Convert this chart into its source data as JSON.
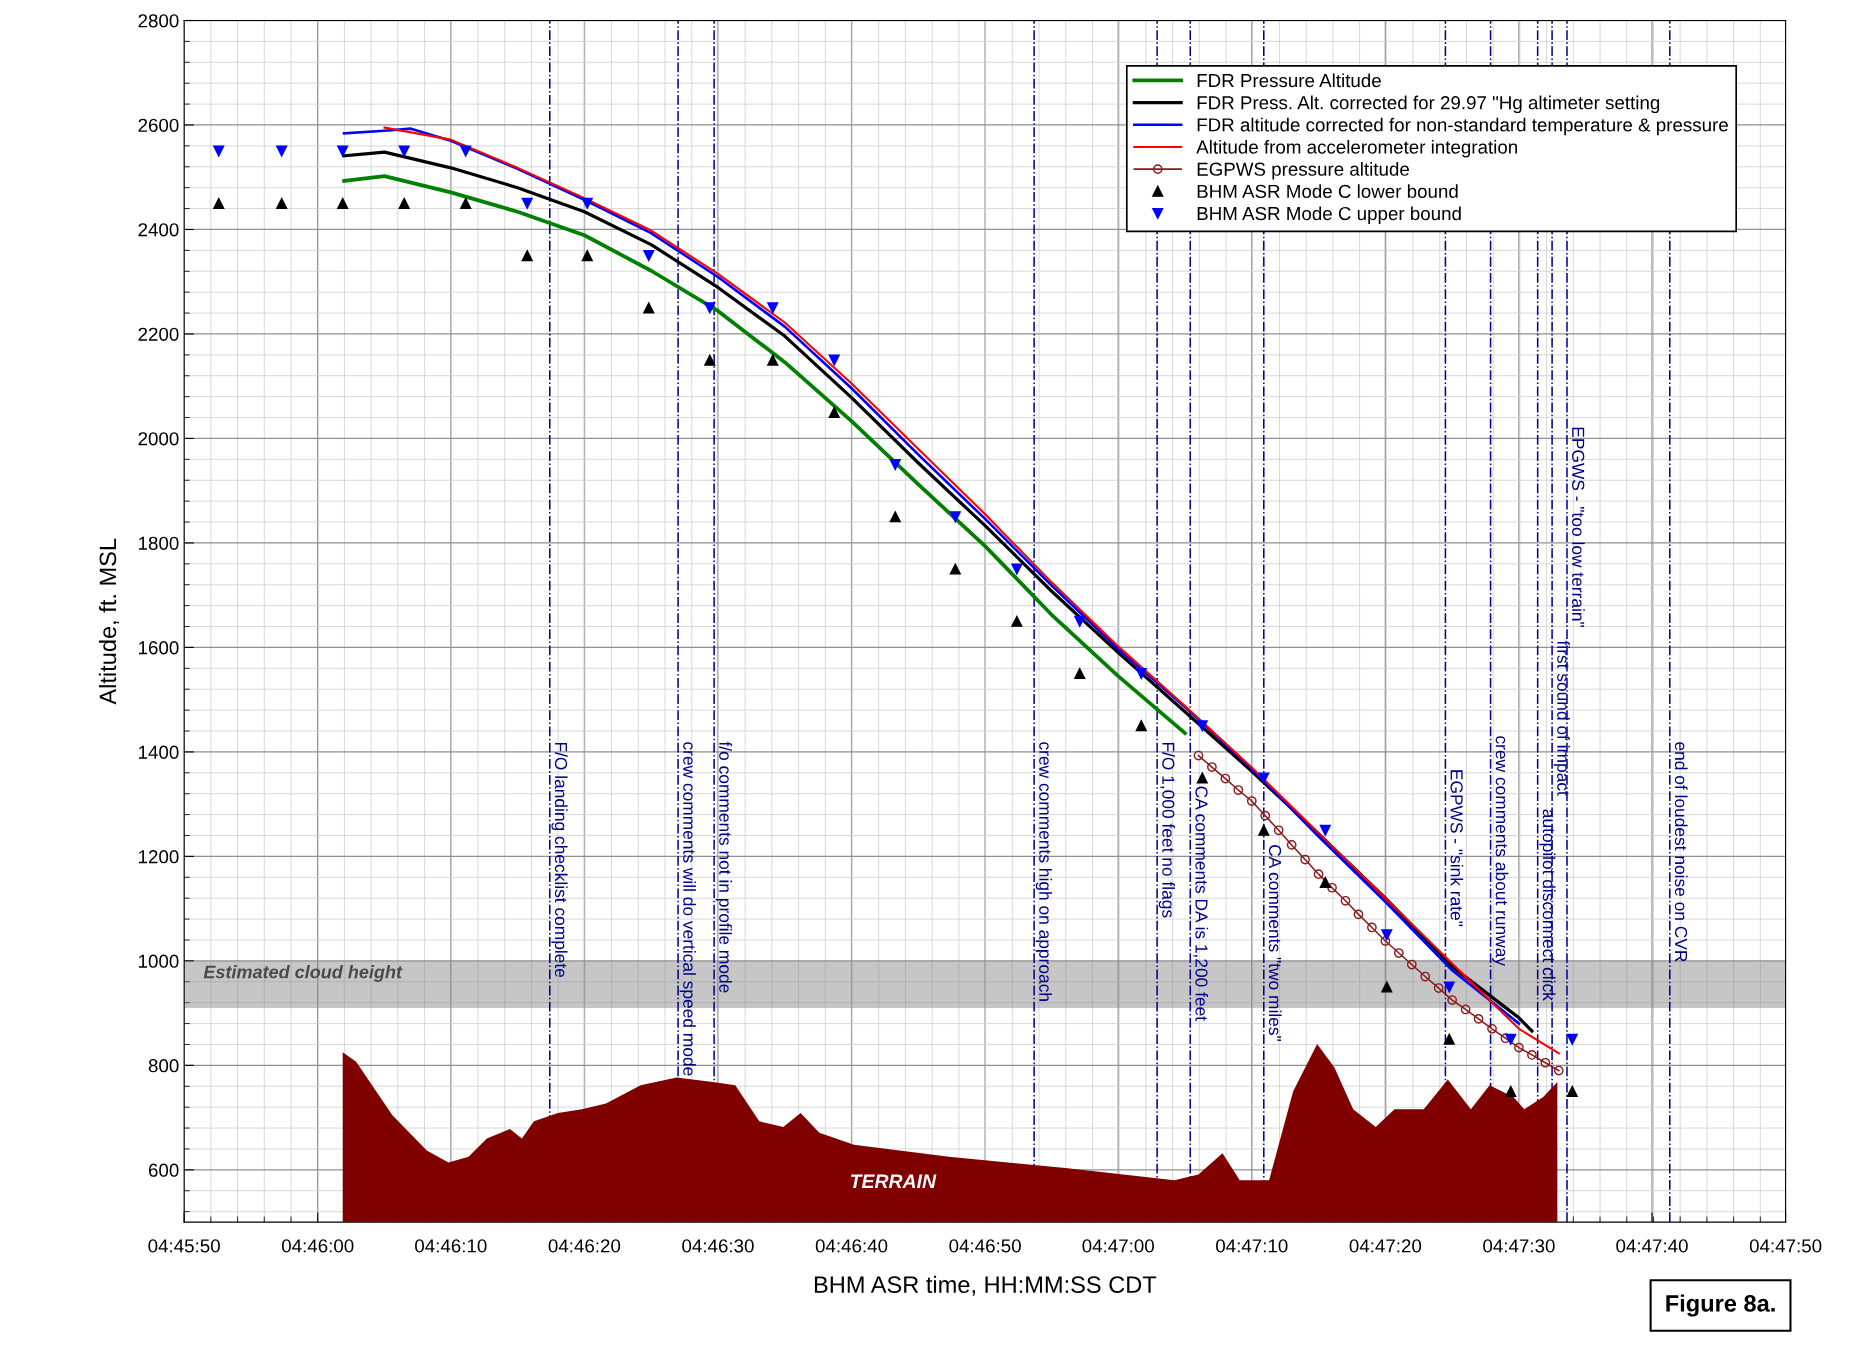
{
  "chart_data": {
    "type": "line",
    "xlabel": "BHM ASR time, HH:MM:SS CDT",
    "ylabel": "Altitude, ft. MSL",
    "xlim": [
      4.76389,
      4.79722
    ],
    "xticks": [
      {
        "value": 4.76389,
        "label": "04:45:50"
      },
      {
        "value": 4.76667,
        "label": "04:46:00"
      },
      {
        "value": 4.76944,
        "label": "04:46:10"
      },
      {
        "value": 4.77222,
        "label": "04:46:20"
      },
      {
        "value": 4.775,
        "label": "04:46:30"
      },
      {
        "value": 4.77778,
        "label": "04:46:40"
      },
      {
        "value": 4.78056,
        "label": "04:46:50"
      },
      {
        "value": 4.78333,
        "label": "04:47:00"
      },
      {
        "value": 4.78611,
        "label": "04:47:10"
      },
      {
        "value": 4.78889,
        "label": "04:47:20"
      },
      {
        "value": 4.79167,
        "label": "04:47:30"
      },
      {
        "value": 4.79444,
        "label": "04:47:40"
      },
      {
        "value": 4.79722,
        "label": "04:47:50"
      }
    ],
    "ylim": [
      500,
      2800
    ],
    "yticks": [
      600,
      800,
      1000,
      1200,
      1400,
      1600,
      1800,
      2000,
      2200,
      2400,
      2600,
      2800
    ],
    "grid": true,
    "legend": "top right",
    "series": [
      {
        "name": "TERRAIN",
        "type": "area",
        "color": "#800000",
        "x": [
          4.76719,
          4.76747,
          4.76822,
          4.76894,
          4.76939,
          4.76981,
          4.77019,
          4.77067,
          4.77092,
          4.77117,
          4.77167,
          4.77217,
          4.77267,
          4.77339,
          4.77414,
          4.77489,
          4.77536,
          4.77586,
          4.77636,
          4.77672,
          4.77711,
          4.77783,
          4.77981,
          4.78228,
          4.7845,
          4.785,
          4.7855,
          4.78586,
          4.78647,
          4.78697,
          4.78747,
          4.78783,
          4.78822,
          4.78869,
          4.78908,
          4.78969,
          4.79019,
          4.79067,
          4.79106,
          4.79156,
          4.79178,
          4.79217,
          4.79247
        ],
        "values": [
          825,
          807,
          705,
          637,
          614,
          625,
          660,
          678,
          660,
          693,
          709,
          716,
          727,
          762,
          777,
          768,
          762,
          693,
          682,
          709,
          671,
          648,
          625,
          603,
          580,
          591,
          632,
          580,
          580,
          750,
          841,
          796,
          716,
          682,
          716,
          716,
          773,
          716,
          762,
          739,
          716,
          739,
          768
        ]
      },
      {
        "name": "FDR Pressure Altitude",
        "color": "#008000",
        "marker": "none",
        "x": [
          4.76722,
          4.76806,
          4.76944,
          4.77083,
          4.77222,
          4.77361,
          4.775,
          4.77639,
          4.77778,
          4.77917,
          4.78056,
          4.78194,
          4.78333,
          4.78472
        ],
        "values": [
          2493,
          2502,
          2471,
          2434,
          2389,
          2321,
          2244,
          2146,
          2033,
          1912,
          1794,
          1663,
          1545,
          1436
        ]
      },
      {
        "name": "FDR Press. Alt. corrected for 29.97 \"Hg altimeter setting",
        "color": "#000000",
        "marker": "none",
        "x": [
          4.76722,
          4.76806,
          4.76944,
          4.77083,
          4.77222,
          4.77361,
          4.775,
          4.77639,
          4.77778,
          4.77917,
          4.78056,
          4.78194,
          4.78333,
          4.78472,
          4.78611,
          4.7875,
          4.78889,
          4.79028,
          4.79167,
          4.79194
        ],
        "values": [
          2541,
          2548,
          2518,
          2480,
          2434,
          2371,
          2289,
          2196,
          2078,
          1953,
          1833,
          1708,
          1590,
          1477,
          1363,
          1243,
          1120,
          989,
          891,
          866
        ]
      },
      {
        "name": "FDR altitude corrected for non-standard temperature & pressure",
        "color": "#0000ff",
        "marker": "none",
        "x": [
          4.76722,
          4.76806,
          4.76861,
          4.76944,
          4.77083,
          4.77222,
          4.77361,
          4.775,
          4.77639,
          4.77778,
          4.77917,
          4.78056,
          4.78194,
          4.78333,
          4.78472,
          4.78611,
          4.7875,
          4.78889,
          4.79028,
          4.79167
        ],
        "values": [
          2584,
          2589,
          2593,
          2570,
          2516,
          2457,
          2393,
          2309,
          2214,
          2096,
          1969,
          1846,
          1719,
          1597,
          1486,
          1368,
          1238,
          1113,
          982,
          880
        ]
      },
      {
        "name": "Altitude from accelerometer integration",
        "color": "#ff0000",
        "marker": "none",
        "x": [
          4.76806,
          4.76944,
          4.77083,
          4.77222,
          4.77361,
          4.775,
          4.77639,
          4.77778,
          4.77917,
          4.78056,
          4.78194,
          4.78333,
          4.78472,
          4.78611,
          4.7875,
          4.78889,
          4.79028,
          4.79167,
          4.7925
        ],
        "values": [
          2595,
          2572,
          2518,
          2460,
          2398,
          2315,
          2222,
          2105,
          1980,
          1855,
          1725,
          1602,
          1488,
          1370,
          1245,
          1120,
          995,
          870,
          823
        ]
      },
      {
        "name": "EGPWS pressure altitude",
        "color": "#8b1a1a",
        "marker": "circle",
        "x": [
          4.785,
          4.78528,
          4.78556,
          4.78583,
          4.78611,
          4.78639,
          4.78667,
          4.78694,
          4.78722,
          4.7875,
          4.78778,
          4.78806,
          4.78833,
          4.78861,
          4.78889,
          4.78917,
          4.78944,
          4.78972,
          4.79,
          4.79028,
          4.79056,
          4.79083,
          4.79111,
          4.79139,
          4.79167,
          4.79194,
          4.79222,
          4.7925
        ],
        "values": [
          1393,
          1371,
          1349,
          1327,
          1306,
          1278,
          1250,
          1222,
          1194,
          1166,
          1140,
          1115,
          1089,
          1064,
          1038,
          1015,
          993,
          970,
          948,
          925,
          907,
          889,
          870,
          852,
          834,
          820,
          805,
          790
        ]
      },
      {
        "name": "BHM ASR Mode C lower bound",
        "type": "scatter",
        "color": "#000000",
        "marker": "triangle",
        "x": [
          4.76461,
          4.76592,
          4.76719,
          4.76847,
          4.76975,
          4.77103,
          4.77228,
          4.77356,
          4.77483,
          4.77614,
          4.77742,
          4.77869,
          4.77994,
          4.78122,
          4.78253,
          4.78381,
          4.78508,
          4.78636,
          4.78764,
          4.78892,
          4.79022,
          4.7915,
          4.79278
        ],
        "values": [
          2450,
          2450,
          2450,
          2450,
          2450,
          2350,
          2350,
          2250,
          2150,
          2150,
          2050,
          1850,
          1750,
          1650,
          1550,
          1450,
          1350,
          1250,
          1150,
          950,
          850,
          750,
          750
        ]
      },
      {
        "name": "BHM ASR Mode C upper bound",
        "type": "scatter",
        "color": "#0000ff",
        "marker": "triangle_down",
        "x": [
          4.76461,
          4.76592,
          4.76719,
          4.76847,
          4.76975,
          4.77103,
          4.77228,
          4.77356,
          4.77483,
          4.77614,
          4.77742,
          4.77869,
          4.77994,
          4.78122,
          4.78253,
          4.78381,
          4.78508,
          4.78636,
          4.78764,
          4.78892,
          4.79022,
          4.7915,
          4.79278
        ],
        "values": [
          2550,
          2550,
          2550,
          2550,
          2550,
          2450,
          2450,
          2350,
          2250,
          2250,
          2150,
          1950,
          1850,
          1750,
          1650,
          1550,
          1450,
          1350,
          1250,
          1050,
          950,
          850,
          850
        ]
      }
    ],
    "bands": [
      {
        "axis": "y",
        "from": 910,
        "to": 1000,
        "label": "Estimated cloud height",
        "color": "#808080"
      }
    ],
    "ref_lines": [
      {
        "axis": "x",
        "value": 4.7715,
        "label": "F/O landing checklist complete",
        "color": "#00008b",
        "line_style": "dashed"
      },
      {
        "axis": "x",
        "value": 4.77417,
        "label": "crew comments will do vertical speed mode",
        "color": "#00008b",
        "line_style": "dashed"
      },
      {
        "axis": "x",
        "value": 4.77492,
        "label": "f/o comments not in profile mode",
        "color": "#00008b",
        "line_style": "dashed"
      },
      {
        "axis": "x",
        "value": 4.78158,
        "label": "crew comments high on approach",
        "color": "#00008b",
        "line_style": "dashed"
      },
      {
        "axis": "x",
        "value": 4.78414,
        "label": "F/O 1,000 feet no flags",
        "color": "#00008b",
        "line_style": "dashed"
      },
      {
        "axis": "x",
        "value": 4.78483,
        "label": "CA comments DA is 1,200 feet",
        "color": "#00008b",
        "line_style": "dashed"
      },
      {
        "axis": "x",
        "value": 4.78636,
        "label": "CA comments \"two miles\"",
        "color": "#00008b",
        "line_style": "dashed"
      },
      {
        "axis": "x",
        "value": 4.79014,
        "label": "EGPWS - \"sink rate\"",
        "color": "#00008b",
        "line_style": "dashed"
      },
      {
        "axis": "x",
        "value": 4.79108,
        "label": "crew comments about runway",
        "color": "#00008b",
        "line_style": "dashed"
      },
      {
        "axis": "x",
        "value": 4.79206,
        "label": "autopilot disconnect click",
        "color": "#00008b",
        "line_style": "dashed"
      },
      {
        "axis": "x",
        "value": 4.79236,
        "label": "first sound of impact",
        "color": "#00008b",
        "line_style": "dashed"
      },
      {
        "axis": "x",
        "value": 4.79267,
        "label": "EPGWS - \"too low terrain\"",
        "color": "#00008b",
        "line_style": "dashed"
      },
      {
        "axis": "x",
        "value": 4.79481,
        "label": "end of loudest noise on CVR",
        "color": "#00008b",
        "line_style": "dashed"
      }
    ],
    "annotations": [
      "Figure 8a."
    ]
  }
}
